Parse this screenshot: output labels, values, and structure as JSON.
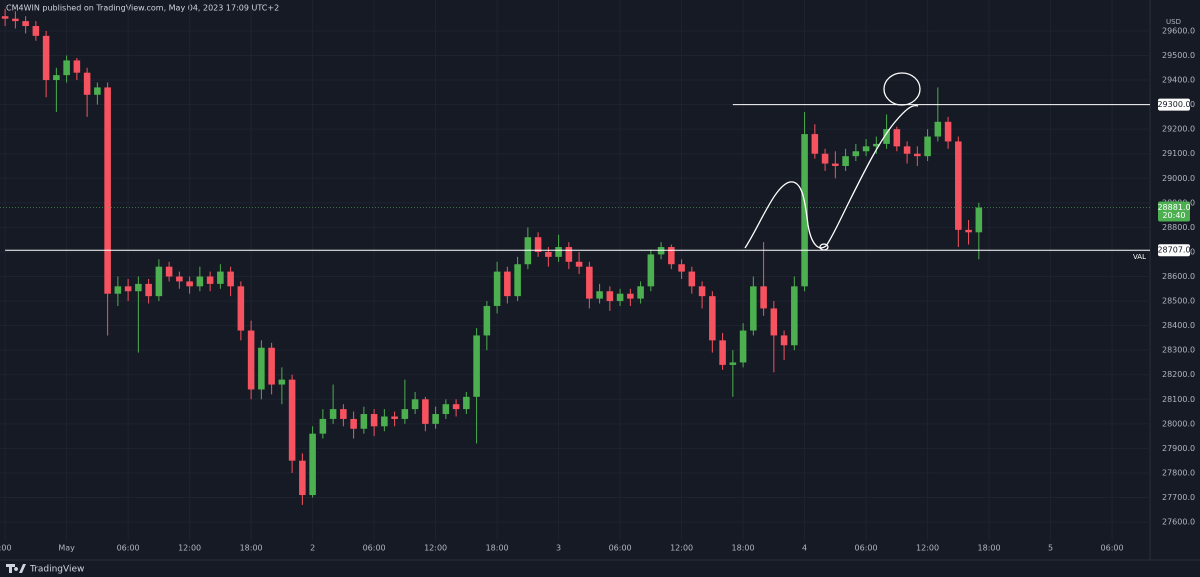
{
  "chart_data": {
    "type": "candlestick",
    "header": "CM4WIN published on TradingView.com, May 04, 2023 17:09 UTC+2",
    "currency": "USD",
    "brand": "TradingView",
    "up_color": "#4caf50",
    "down_color": "#f7525f",
    "grid": true,
    "categories": [
      null,
      null,
      null,
      null,
      null,
      null,
      null,
      null,
      null,
      null,
      null,
      null,
      null,
      null,
      null,
      null,
      null,
      null,
      null,
      null,
      null,
      null,
      null,
      null,
      null,
      null,
      null,
      null,
      null,
      null,
      null,
      null,
      null,
      null,
      null,
      null,
      null,
      null,
      null,
      null,
      null,
      null,
      null,
      null,
      null,
      null,
      null,
      null,
      null,
      null,
      null,
      null,
      null,
      null,
      null,
      null,
      null,
      null,
      null,
      null,
      null,
      null,
      null,
      null,
      null,
      null,
      null,
      null,
      null,
      null,
      null,
      null,
      null,
      null,
      null,
      null,
      null,
      null,
      null,
      null,
      null,
      null,
      null,
      null,
      null,
      null,
      null,
      null,
      null,
      null,
      null,
      null,
      null,
      null,
      null,
      null
    ],
    "open": [
      29660,
      29650,
      29640,
      29620,
      29580,
      29400,
      29420,
      29480,
      29430,
      29340,
      29370,
      28530,
      28560,
      28540,
      28570,
      28520,
      28640,
      28600,
      28580,
      28560,
      28600,
      28570,
      28620,
      28560,
      28380,
      28140,
      28310,
      28160,
      28180,
      27850,
      27710,
      27960,
      28020,
      28060,
      28020,
      27980,
      28040,
      27990,
      28030,
      28020,
      28060,
      28100,
      28000,
      28040,
      28080,
      28060,
      28110,
      28360,
      28480,
      28620,
      28520,
      28650,
      28760,
      28700,
      28680,
      28720,
      28660,
      28640,
      28510,
      28540,
      28500,
      28530,
      28510,
      28560,
      28690,
      28720,
      28650,
      28620,
      28560,
      28520,
      28340,
      28240,
      28250,
      28380,
      28560,
      28470,
      28360,
      28320,
      28560,
      29180,
      29100,
      29060,
      29050,
      29090,
      29110,
      29130,
      29140,
      29200,
      29130,
      29100,
      29090,
      29170,
      29230,
      29150,
      28790,
      28780
    ],
    "high": [
      29690,
      29680,
      29660,
      29640,
      29600,
      29450,
      29500,
      29490,
      29450,
      29390,
      29390,
      28600,
      28590,
      28600,
      28590,
      28670,
      28660,
      28620,
      28600,
      28640,
      28620,
      28650,
      28640,
      28580,
      28420,
      28340,
      28330,
      28230,
      28200,
      27880,
      27990,
      28060,
      28160,
      28080,
      28050,
      28070,
      28060,
      28060,
      28050,
      28180,
      28130,
      28110,
      28070,
      28100,
      28100,
      28130,
      28390,
      28500,
      28660,
      28640,
      28680,
      28800,
      28780,
      28720,
      28770,
      28740,
      28700,
      28660,
      28570,
      28560,
      28550,
      28550,
      28580,
      28710,
      28740,
      28730,
      28670,
      28640,
      28580,
      28540,
      28370,
      28300,
      28410,
      28600,
      28740,
      28500,
      28380,
      28600,
      29270,
      29220,
      29120,
      29110,
      29120,
      29140,
      29160,
      29170,
      29260,
      29210,
      29150,
      29130,
      29200,
      29370,
      29250,
      29170,
      28830,
      28900
    ],
    "low": [
      29620,
      29610,
      29590,
      29560,
      29330,
      29270,
      29390,
      29400,
      29250,
      29300,
      28360,
      28480,
      28500,
      28290,
      28490,
      28500,
      28580,
      28550,
      28530,
      28540,
      28540,
      28550,
      28520,
      28340,
      28100,
      28100,
      28120,
      28080,
      27800,
      27670,
      27700,
      27940,
      28000,
      27990,
      27940,
      27960,
      27950,
      27970,
      27990,
      28000,
      28040,
      27970,
      27980,
      28020,
      28030,
      28040,
      27920,
      28300,
      28450,
      28490,
      28500,
      28630,
      28680,
      28640,
      28660,
      28630,
      28610,
      28470,
      28490,
      28460,
      28480,
      28480,
      28490,
      28540,
      28670,
      28630,
      28590,
      28530,
      28470,
      28290,
      28220,
      28110,
      28230,
      28360,
      28440,
      28210,
      28260,
      28300,
      28540,
      29080,
      29030,
      29000,
      29030,
      29070,
      29090,
      29100,
      29120,
      29110,
      29060,
      29050,
      29070,
      29150,
      29120,
      28720,
      28730,
      28670
    ],
    "close": [
      29650,
      29640,
      29620,
      29580,
      29400,
      29420,
      29480,
      29430,
      29340,
      29370,
      28530,
      28560,
      28540,
      28570,
      28520,
      28640,
      28600,
      28580,
      28560,
      28600,
      28570,
      28620,
      28560,
      28380,
      28140,
      28310,
      28160,
      28180,
      27850,
      27710,
      27960,
      28020,
      28060,
      28020,
      27980,
      28040,
      27990,
      28030,
      28020,
      28060,
      28100,
      28000,
      28040,
      28080,
      28060,
      28110,
      28360,
      28480,
      28620,
      28520,
      28650,
      28760,
      28700,
      28680,
      28720,
      28660,
      28640,
      28510,
      28540,
      28500,
      28530,
      28510,
      28560,
      28690,
      28720,
      28650,
      28620,
      28560,
      28520,
      28340,
      28240,
      28250,
      28380,
      28560,
      28470,
      28360,
      28320,
      28560,
      29180,
      29100,
      29060,
      29050,
      29090,
      29110,
      29130,
      29140,
      29200,
      29130,
      29100,
      29090,
      29170,
      29230,
      29150,
      28790,
      28780,
      28881
    ],
    "xlim": [
      -0.5,
      111.7
    ],
    "xticks": [
      {
        "value": 0,
        "label": ":00"
      },
      {
        "value": 6,
        "label": "May"
      },
      {
        "value": 12,
        "label": "06:00"
      },
      {
        "value": 18,
        "label": "12:00"
      },
      {
        "value": 24,
        "label": "18:00"
      },
      {
        "value": 30,
        "label": "2"
      },
      {
        "value": 36,
        "label": "06:00"
      },
      {
        "value": 42,
        "label": "12:00"
      },
      {
        "value": 48,
        "label": "18:00"
      },
      {
        "value": 54,
        "label": "3"
      },
      {
        "value": 60,
        "label": "06:00"
      },
      {
        "value": 66,
        "label": "12:00"
      },
      {
        "value": 72,
        "label": "18:00"
      },
      {
        "value": 78,
        "label": "4"
      },
      {
        "value": 84,
        "label": "06:00"
      },
      {
        "value": 90,
        "label": "12:00"
      },
      {
        "value": 96,
        "label": "18:00"
      },
      {
        "value": 102,
        "label": "5"
      },
      {
        "value": 108,
        "label": "06:00"
      }
    ],
    "ylim": [
      27527,
      29726
    ],
    "yticks": [
      {
        "value": 27600,
        "label": "27600.0"
      },
      {
        "value": 27700,
        "label": "27700.0"
      },
      {
        "value": 27800,
        "label": "27800.0"
      },
      {
        "value": 27900,
        "label": "27900.0"
      },
      {
        "value": 28000,
        "label": "28000.0"
      },
      {
        "value": 28100,
        "label": "28100.0"
      },
      {
        "value": 28200,
        "label": "28200.0"
      },
      {
        "value": 28300,
        "label": "28300.0"
      },
      {
        "value": 28400,
        "label": "28400.0"
      },
      {
        "value": 28500,
        "label": "28500.0"
      },
      {
        "value": 28600,
        "label": "28600.0"
      },
      {
        "value": 28700,
        "label": "28700.0"
      },
      {
        "value": 28800,
        "label": "28800.0"
      },
      {
        "value": 28900,
        "label": "28900.0"
      },
      {
        "value": 29000,
        "label": "29000.0"
      },
      {
        "value": 29100,
        "label": "29100.0"
      },
      {
        "value": 29200,
        "label": "29200.0"
      },
      {
        "value": 29300,
        "label": "29300.0"
      },
      {
        "value": 29400,
        "label": "29400.0"
      },
      {
        "value": 29500,
        "label": "29500.0"
      },
      {
        "value": 29600,
        "label": "29600.0"
      }
    ],
    "levels": [
      {
        "value": 29300,
        "label": "29300.0",
        "start": 71
      },
      {
        "value": 28707,
        "label": "28707.0",
        "name": "VAL",
        "start": 0
      }
    ],
    "last_price": {
      "value": 28881,
      "label": "28881.0",
      "countdown": "20:40"
    }
  }
}
